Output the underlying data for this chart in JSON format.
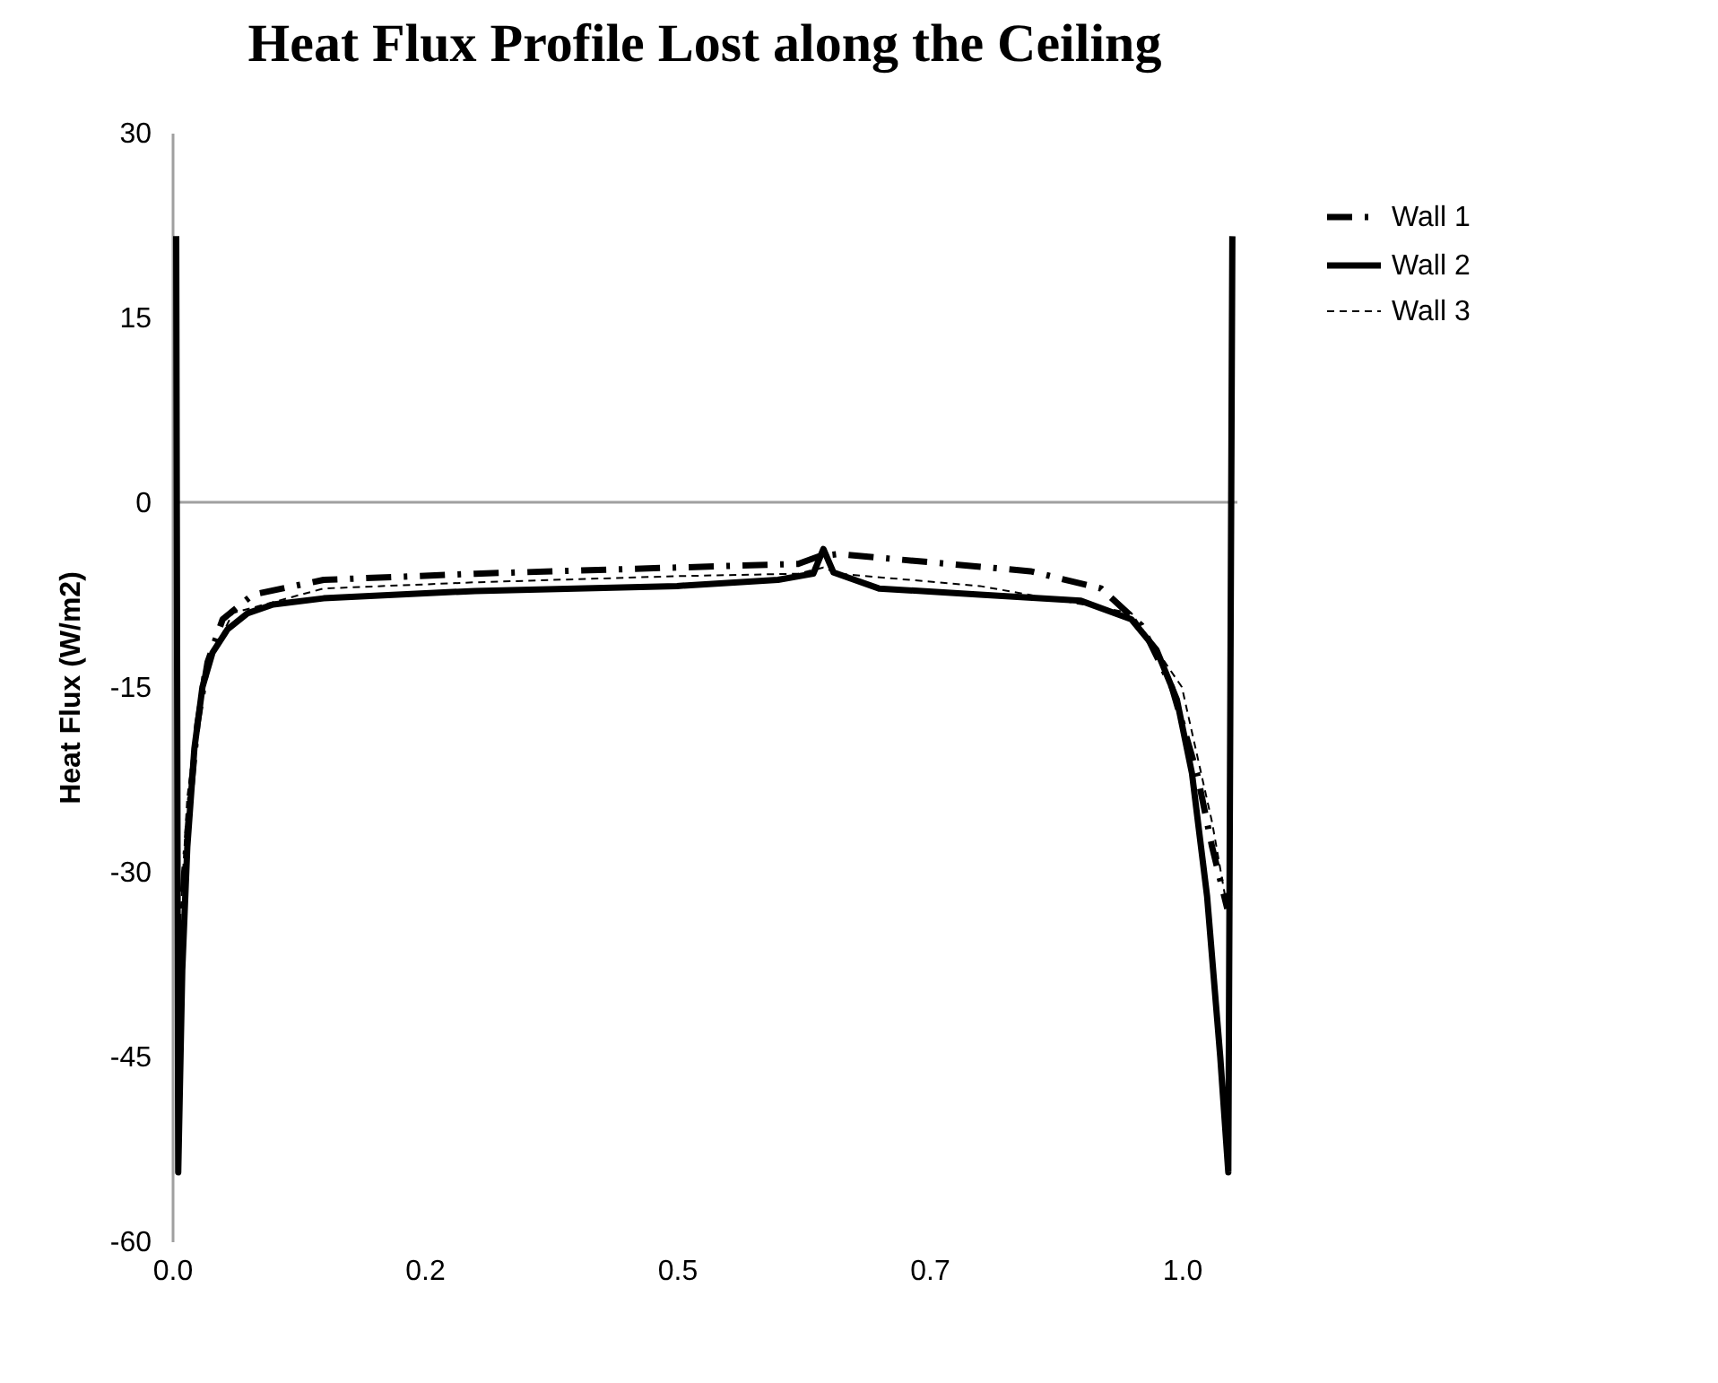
{
  "chart_data": {
    "type": "line",
    "title": "Heat Flux Profile Lost along the Ceiling",
    "ylabel": "Heat Flux (W/m2)",
    "xlim": [
      0,
      1.055
    ],
    "xticks": [
      {
        "value": 0,
        "label": "0.0"
      },
      {
        "value": 0.25,
        "label": "0.2"
      },
      0.5,
      {
        "value": 0.75,
        "label": "0.7"
      },
      {
        "value": 1,
        "label": "1.0"
      }
    ],
    "ylim": [
      -60,
      30
    ],
    "yticks": [
      -60,
      -45,
      -30,
      -15,
      0,
      15,
      30
    ],
    "grid": false,
    "legend": "right",
    "marker": "none",
    "ref_lines": [
      {
        "axis": "y",
        "value": 0,
        "color": "#a0a0a0"
      }
    ],
    "series": [
      {
        "name": "Wall 1",
        "color": "#000000",
        "line_style": "dashdot",
        "x": [
          0.008,
          0.012,
          0.018,
          0.025,
          0.035,
          0.05,
          0.08,
          0.15,
          0.3,
          0.5,
          0.62,
          0.64,
          0.66,
          0.7,
          0.85,
          0.92,
          0.96,
          0.99,
          1.015,
          1.03,
          1.045
        ],
        "values": [
          -36,
          -30,
          -24,
          -18,
          -13,
          -9.5,
          -7.5,
          -6.3,
          -5.8,
          -5.3,
          -5,
          -4.4,
          -4.2,
          -4.5,
          -5.6,
          -7,
          -10,
          -15,
          -22,
          -28,
          -33
        ]
      },
      {
        "name": "Wall 2",
        "color": "#000000",
        "line_style": "solid",
        "x": [
          0.004,
          0.006,
          0.01,
          0.015,
          0.022,
          0.03,
          0.04,
          0.055,
          0.075,
          0.1,
          0.15,
          0.3,
          0.5,
          0.6,
          0.635,
          0.645,
          0.655,
          0.7,
          0.8,
          0.9,
          0.95,
          0.975,
          0.995,
          1.01,
          1.025,
          1.038,
          1.046,
          1.05
        ],
        "values": [
          21.6,
          -54.4,
          -38,
          -28,
          -20,
          -15,
          -12.2,
          -10.3,
          -9,
          -8.3,
          -7.8,
          -7.2,
          -6.8,
          -6.3,
          -5.8,
          -3.8,
          -5.7,
          -7,
          -7.5,
          -8,
          -9.5,
          -12,
          -16,
          -22,
          -32,
          -45,
          -54.4,
          21.6
        ]
      },
      {
        "name": "Wall 3",
        "color": "#000000",
        "line_style": "dashed",
        "x": [
          0.008,
          0.015,
          0.03,
          0.06,
          0.15,
          0.3,
          0.5,
          0.62,
          0.645,
          0.66,
          0.8,
          0.95,
          1.0,
          1.03,
          1.045
        ],
        "values": [
          -34,
          -24,
          -14,
          -9,
          -7,
          -6.5,
          -6,
          -5.8,
          -5.3,
          -5.8,
          -6.8,
          -9,
          -15,
          -26,
          -33
        ]
      }
    ]
  }
}
